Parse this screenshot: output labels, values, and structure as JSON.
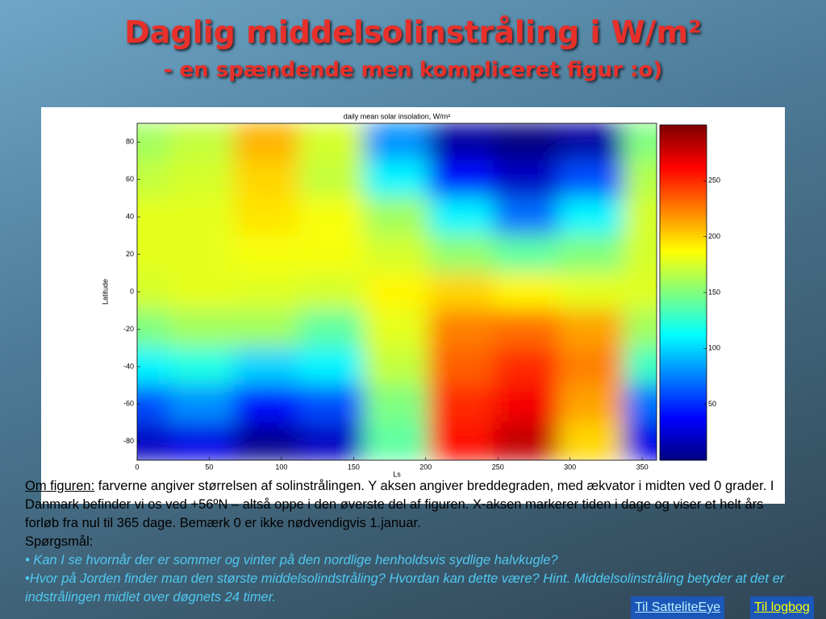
{
  "header": {
    "title": "Daglig middelsolinstråling i W/m²",
    "subtitle": "- en spændende men kompliceret figur :o)"
  },
  "chart_data": {
    "type": "heatmap",
    "title": "daily mean solar insolation, W/m²",
    "x_label": "Ls",
    "y_label": "Latitude",
    "x": [
      0,
      45,
      90,
      135,
      180,
      225,
      270,
      315,
      360
    ],
    "y": [
      80,
      60,
      40,
      20,
      0,
      -20,
      -40,
      -60,
      -80
    ],
    "values": [
      [
        160,
        170,
        210,
        175,
        80,
        10,
        0,
        10,
        150
      ],
      [
        170,
        175,
        200,
        170,
        110,
        40,
        20,
        60,
        165
      ],
      [
        180,
        180,
        195,
        185,
        160,
        110,
        70,
        110,
        175
      ],
      [
        180,
        180,
        185,
        185,
        175,
        155,
        140,
        150,
        175
      ],
      [
        175,
        180,
        178,
        175,
        190,
        200,
        190,
        180,
        178
      ],
      [
        150,
        160,
        160,
        140,
        180,
        225,
        230,
        215,
        160
      ],
      [
        110,
        120,
        100,
        110,
        170,
        235,
        250,
        225,
        130
      ],
      [
        60,
        80,
        40,
        60,
        150,
        250,
        265,
        215,
        70
      ],
      [
        20,
        30,
        5,
        20,
        140,
        260,
        280,
        200,
        30
      ]
    ],
    "xlim": [
      0,
      360
    ],
    "ylim": [
      -90,
      90
    ],
    "xticks": [
      0,
      50,
      100,
      150,
      200,
      250,
      300,
      350
    ],
    "yticks": [
      -80,
      -60,
      -40,
      -20,
      0,
      20,
      40,
      60,
      80
    ],
    "colorbar_lim": [
      0,
      300
    ],
    "colorbar_ticks": [
      50,
      100,
      150,
      200,
      250
    ]
  },
  "body": {
    "lead": "Om figuren:",
    "text": "farverne angiver størrelsen af solinstrålingen. Y aksen angiver breddegraden, med ækvator i midten ved 0 grader. I Danmark befinder vi os ved +56ºN – altså oppe i den øverste del af figuren. X-aksen markerer tiden i dage og viser et helt års forløb fra nul til 365 dage. Bemærk 0 er ikke nødvendigvis 1.januar.",
    "questions_label": "Spørgsmål:",
    "questions": [
      "• Kan I se hvornår der er sommer og vinter på den nordlige henholdsvis sydlige halvkugle?",
      "•Hvor på Jorden finder man den største middelsolindstråling? Hvordan kan dette være? Hint. Middelsolinstråling betyder at det er indstrålingen midlet over døgnets 24 timer."
    ]
  },
  "links": [
    "Til SatteliteEye",
    "Til logbog"
  ]
}
